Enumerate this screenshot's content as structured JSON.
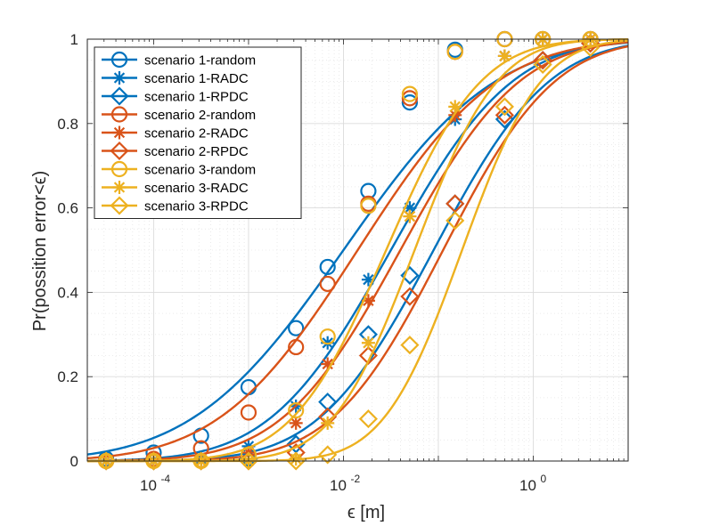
{
  "chart_data": {
    "type": "line",
    "xscale": "log",
    "xlabel": "ϵ [m]",
    "ylabel": "Pr(possition error<ϵ)",
    "xlim": [
      2e-05,
      10
    ],
    "ylim": [
      0,
      1
    ],
    "grid": "on",
    "legend_position": "top-left",
    "x_ticks": [
      {
        "value": 0.0001,
        "base": "10",
        "exp": "-4"
      },
      {
        "value": 0.01,
        "base": "10",
        "exp": "-2"
      },
      {
        "value": 1,
        "base": "10",
        "exp": "0"
      }
    ],
    "y_ticks": [
      {
        "value": 0,
        "label": "0"
      },
      {
        "value": 0.2,
        "label": "0.2"
      },
      {
        "value": 0.4,
        "label": "0.4"
      },
      {
        "value": 0.6,
        "label": "0.6"
      },
      {
        "value": 0.8,
        "label": "0.8"
      },
      {
        "value": 1,
        "label": "1"
      }
    ],
    "series": [
      {
        "name": "scenario 1-random",
        "color": "#0072BD",
        "marker": "circle",
        "mu": -2.0,
        "sigma": 1.25,
        "markers_x": [
          3.16e-05,
          0.0001,
          0.000316,
          0.001,
          0.00316,
          0.00681,
          0.0183,
          0.05,
          0.15,
          0.5,
          1.26,
          4.0
        ],
        "markers_y": [
          0.005,
          0.02,
          0.06,
          0.175,
          0.315,
          0.46,
          0.64,
          0.85,
          0.975,
          1.0,
          1.0,
          1.0
        ]
      },
      {
        "name": "scenario 1-RADC",
        "color": "#0072BD",
        "marker": "asterisk",
        "mu": -1.5,
        "sigma": 1.0,
        "markers_x": [
          3.16e-05,
          0.0001,
          0.000316,
          0.001,
          0.00316,
          0.00681,
          0.0183,
          0.05,
          0.15,
          0.5,
          1.26,
          4.0
        ],
        "markers_y": [
          0.0,
          0.0,
          0.005,
          0.035,
          0.13,
          0.28,
          0.43,
          0.6,
          0.81,
          0.96,
          1.0,
          1.0
        ]
      },
      {
        "name": "scenario 1-RPDC",
        "color": "#0072BD",
        "marker": "diamond",
        "mu": -1.05,
        "sigma": 0.95,
        "markers_x": [
          3.16e-05,
          0.0001,
          0.000316,
          0.001,
          0.00316,
          0.00681,
          0.0183,
          0.05,
          0.15,
          0.5,
          1.26,
          4.0
        ],
        "markers_y": [
          0.0,
          0.0,
          0.0,
          0.005,
          0.04,
          0.14,
          0.3,
          0.44,
          0.61,
          0.81,
          0.95,
          0.99
        ]
      },
      {
        "name": "scenario 2-random",
        "color": "#D95319",
        "marker": "circle",
        "mu": -1.85,
        "sigma": 1.15,
        "markers_x": [
          3.16e-05,
          0.0001,
          0.000316,
          0.001,
          0.00316,
          0.00681,
          0.0183,
          0.05,
          0.15,
          0.5,
          1.26,
          4.0
        ],
        "markers_y": [
          0.0,
          0.005,
          0.03,
          0.115,
          0.27,
          0.42,
          0.61,
          0.86,
          0.97,
          1.0,
          1.0,
          1.0
        ]
      },
      {
        "name": "scenario 2-RADC",
        "color": "#D95319",
        "marker": "asterisk",
        "mu": -1.4,
        "sigma": 0.98,
        "markers_x": [
          3.16e-05,
          0.0001,
          0.000316,
          0.001,
          0.00316,
          0.00681,
          0.0183,
          0.05,
          0.15,
          0.5,
          1.26,
          4.0
        ],
        "markers_y": [
          0.0,
          0.0,
          0.0,
          0.02,
          0.09,
          0.23,
          0.38,
          0.58,
          0.82,
          0.96,
          1.0,
          1.0
        ]
      },
      {
        "name": "scenario 2-RPDC",
        "color": "#D95319",
        "marker": "diamond",
        "mu": -0.95,
        "sigma": 0.92,
        "markers_x": [
          3.16e-05,
          0.0001,
          0.000316,
          0.001,
          0.00316,
          0.00681,
          0.0183,
          0.05,
          0.15,
          0.5,
          1.26,
          4.0
        ],
        "markers_y": [
          0.0,
          0.0,
          0.0,
          0.0,
          0.02,
          0.105,
          0.25,
          0.39,
          0.61,
          0.82,
          0.95,
          0.99
        ]
      },
      {
        "name": "scenario 3-random",
        "color": "#EDB120",
        "marker": "circle",
        "mu": -1.55,
        "sigma": 0.78,
        "markers_x": [
          3.16e-05,
          0.0001,
          0.000316,
          0.001,
          0.00316,
          0.00681,
          0.0183,
          0.05,
          0.15,
          0.5,
          1.26,
          4.0
        ],
        "markers_y": [
          0.0,
          0.0,
          0.0,
          0.015,
          0.12,
          0.295,
          0.605,
          0.87,
          0.97,
          1.0,
          1.0,
          1.0
        ]
      },
      {
        "name": "scenario 3-RADC",
        "color": "#EDB120",
        "marker": "asterisk",
        "mu": -1.25,
        "sigma": 0.68,
        "markers_x": [
          3.16e-05,
          0.0001,
          0.000316,
          0.001,
          0.00316,
          0.00681,
          0.0183,
          0.05,
          0.15,
          0.5,
          1.26,
          4.0
        ],
        "markers_y": [
          0.0,
          0.0,
          0.0,
          0.0,
          0.005,
          0.09,
          0.28,
          0.58,
          0.84,
          0.96,
          1.0,
          1.0
        ]
      },
      {
        "name": "scenario 3-RPDC",
        "color": "#EDB120",
        "marker": "diamond",
        "mu": -0.75,
        "sigma": 0.65,
        "markers_x": [
          3.16e-05,
          0.0001,
          0.000316,
          0.001,
          0.00316,
          0.00681,
          0.0183,
          0.05,
          0.15,
          0.5,
          1.26,
          4.0
        ],
        "markers_y": [
          0.0,
          0.0,
          0.0,
          0.0,
          0.0,
          0.015,
          0.1,
          0.275,
          0.57,
          0.84,
          0.94,
          0.98
        ]
      }
    ]
  }
}
